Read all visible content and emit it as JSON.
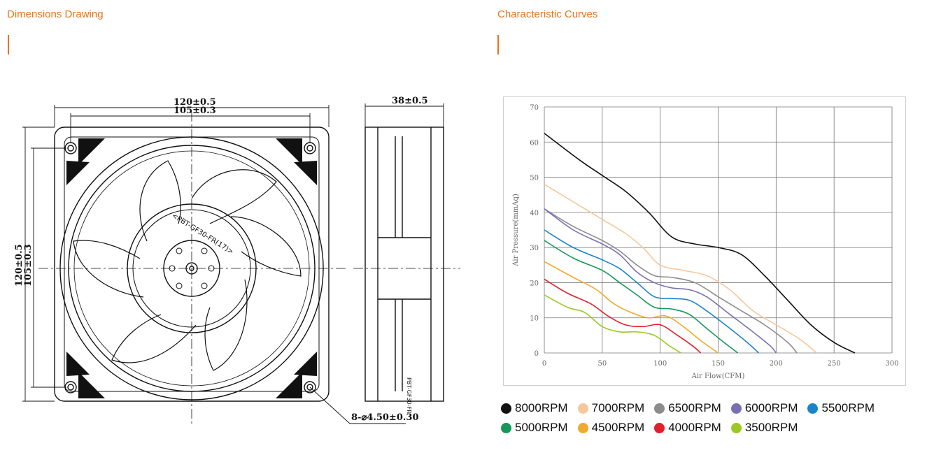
{
  "sections": {
    "left_title": "Dimensions Drawing",
    "right_title": "Characteristic Curves"
  },
  "drawing": {
    "dim_outer_width": "120±0.5",
    "dim_hole_width": "105±0.3",
    "dim_depth": "38±0.5",
    "dim_outer_height": "120±0.5",
    "dim_hole_height": "105±0.3",
    "hole_callout": "8-⌀4.50±0.30",
    "hub_text": "<PBT-GF30-FR(17)>",
    "side_label": "PBT-GF30-FR"
  },
  "chart_data": {
    "type": "line",
    "xlabel": "Air Flow(CFM)",
    "ylabel": "Air Pressure(mmAq)",
    "xlim": [
      0,
      300
    ],
    "ylim": [
      0,
      70
    ],
    "xticks": [
      0,
      50,
      100,
      150,
      200,
      250,
      300
    ],
    "yticks": [
      0,
      10,
      20,
      30,
      40,
      50,
      60,
      70
    ],
    "grid": true,
    "series": [
      {
        "name": "8000RPM",
        "color": "#111111",
        "x": [
          0,
          30,
          50,
          70,
          90,
          110,
          130,
          150,
          170,
          190,
          210,
          230,
          250,
          268
        ],
        "y": [
          62.5,
          55,
          50.5,
          46,
          40,
          33,
          31,
          30,
          28,
          22,
          15,
          8,
          3,
          0
        ]
      },
      {
        "name": "7000RPM",
        "color": "#f6c79b",
        "x": [
          0,
          30,
          50,
          70,
          85,
          100,
          120,
          140,
          160,
          180,
          200,
          220,
          235
        ],
        "y": [
          48,
          42,
          38,
          34,
          30,
          25,
          23.5,
          22,
          18,
          12,
          8,
          4,
          0
        ]
      },
      {
        "name": "6500RPM",
        "color": "#8c8c8c",
        "x": [
          0,
          25,
          50,
          65,
          80,
          95,
          110,
          130,
          150,
          170,
          190,
          210,
          218
        ],
        "y": [
          41,
          36,
          32,
          29,
          25,
          22,
          21.5,
          20,
          16,
          12,
          8,
          3,
          0
        ]
      },
      {
        "name": "6000RPM",
        "color": "#7b6fb4",
        "x": [
          0,
          25,
          50,
          65,
          80,
          95,
          110,
          125,
          140,
          160,
          180,
          195,
          200
        ],
        "y": [
          41,
          35,
          31,
          28,
          23,
          20,
          18.5,
          18,
          16,
          11,
          6,
          2,
          0
        ]
      },
      {
        "name": "5500RPM",
        "color": "#1a84c9",
        "x": [
          0,
          25,
          50,
          65,
          80,
          95,
          110,
          125,
          140,
          160,
          175,
          185
        ],
        "y": [
          35,
          30,
          26.5,
          24,
          20,
          16,
          15.5,
          15,
          12,
          7,
          3,
          0
        ]
      },
      {
        "name": "5000RPM",
        "color": "#17975a",
        "x": [
          0,
          25,
          50,
          65,
          80,
          95,
          110,
          125,
          140,
          155,
          167
        ],
        "y": [
          32,
          27,
          23.5,
          20,
          16.5,
          13,
          12.5,
          11,
          7,
          3,
          0
        ]
      },
      {
        "name": "4500RPM",
        "color": "#f1a92e",
        "x": [
          0,
          25,
          45,
          60,
          75,
          90,
          105,
          120,
          135,
          150
        ],
        "y": [
          26,
          21.5,
          18,
          14,
          11.5,
          10,
          10.5,
          7.5,
          3.5,
          0
        ]
      },
      {
        "name": "4000RPM",
        "color": "#e0202b",
        "x": [
          0,
          20,
          40,
          55,
          70,
          85,
          100,
          115,
          128,
          135
        ],
        "y": [
          21,
          17,
          14,
          10.5,
          8,
          7.5,
          8,
          5,
          2,
          0
        ]
      },
      {
        "name": "3500RPM",
        "color": "#9bc924",
        "x": [
          0,
          20,
          35,
          50,
          65,
          80,
          95,
          108,
          118
        ],
        "y": [
          16.5,
          13,
          11.5,
          7.5,
          6,
          6,
          5,
          2,
          0
        ]
      }
    ]
  }
}
